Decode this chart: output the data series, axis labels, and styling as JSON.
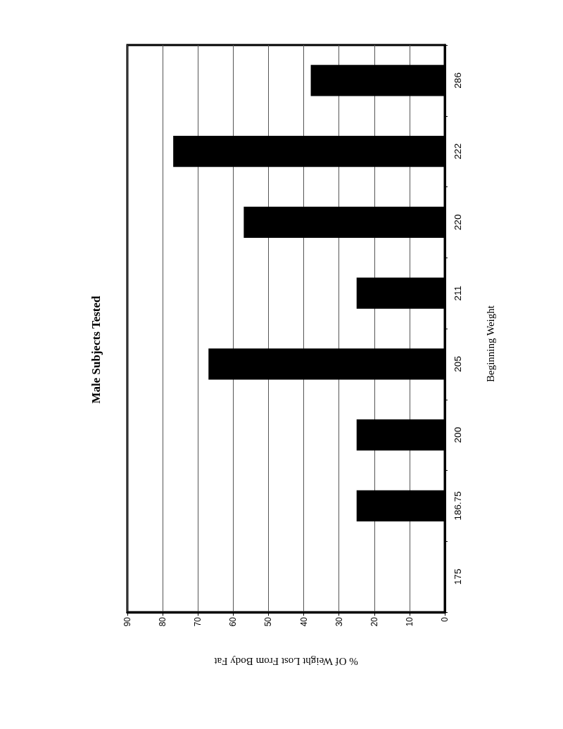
{
  "chart_data": {
    "type": "bar",
    "orientation": "horizontal",
    "title": "Male Subjects Tested",
    "xlabel": "% Of Weight Lost From Body Fat",
    "ylabel": "Beginning Weight",
    "categories": [
      "286",
      "222",
      "220",
      "211",
      "205",
      "200",
      "186.75",
      "175"
    ],
    "values": [
      38,
      77,
      57,
      25,
      67,
      25,
      25,
      null
    ],
    "color": "#000000",
    "xlim": [
      90,
      0
    ],
    "xticks": [
      90,
      80,
      70,
      60,
      50,
      40,
      30,
      20,
      10,
      0
    ],
    "grid": "x"
  }
}
